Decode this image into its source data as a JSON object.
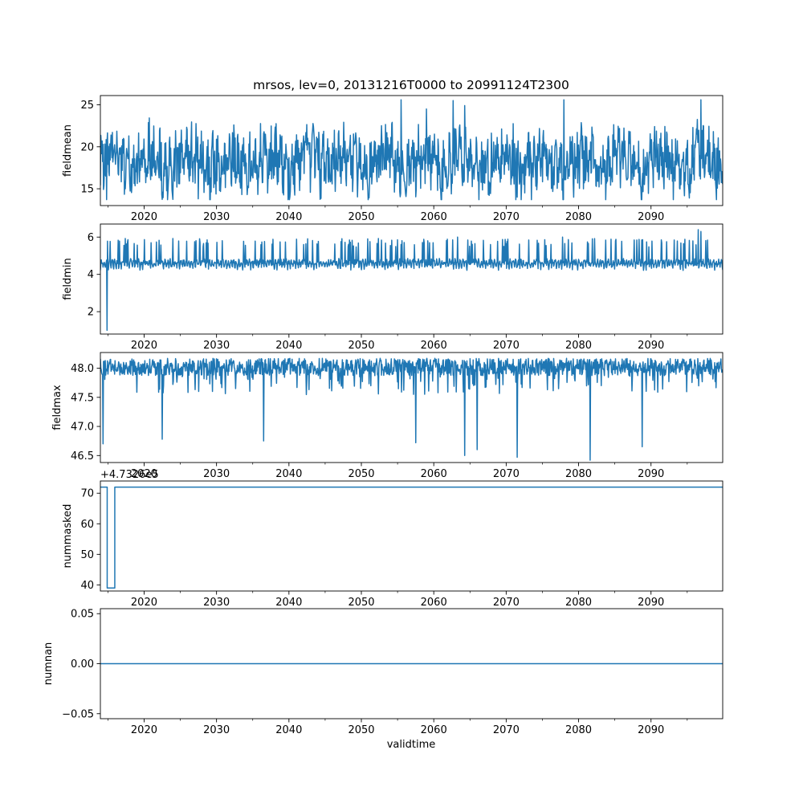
{
  "chart_data": {
    "type": "line",
    "title": "mrsos, lev=0, 20131216T0000 to 20991124T2300",
    "xlabel": "validtime",
    "x_range": [
      2013.96,
      2099.9
    ],
    "x_ticks": [
      "2020",
      "2030",
      "2040",
      "2050",
      "2060",
      "2070",
      "2080",
      "2090"
    ],
    "x_tick_values": [
      2020,
      2030,
      2040,
      2050,
      2060,
      2070,
      2080,
      2090
    ],
    "line_color": "#1f77b4",
    "panels": [
      {
        "ylabel": "fieldmean",
        "ylim": [
          13.0,
          26.1
        ],
        "y_ticks": [
          "15",
          "20",
          "25"
        ],
        "y_tick_values": [
          15,
          20,
          25
        ],
        "baseline": 18.2,
        "noise_amplitude": 3.2,
        "min_value": 13.7,
        "max_value": 25.6,
        "spikes": [
          {
            "x": 2055.5,
            "y": 25.6
          },
          {
            "x": 2062.7,
            "y": 25.5
          },
          {
            "x": 2078.0,
            "y": 25.6
          },
          {
            "x": 2096.9,
            "y": 25.6
          },
          {
            "x": 2064.3,
            "y": 24.9
          },
          {
            "x": 2059.0,
            "y": 24.5
          },
          {
            "x": 2014.8,
            "y": 13.7
          },
          {
            "x": 2027.5,
            "y": 13.8
          },
          {
            "x": 2095.3,
            "y": 13.9
          },
          {
            "x": 2071.5,
            "y": 14.0
          }
        ]
      },
      {
        "ylabel": "fieldmin",
        "ylim": [
          0.8,
          6.7
        ],
        "y_ticks": [
          "2",
          "4",
          "6"
        ],
        "y_tick_values": [
          2,
          4,
          6
        ],
        "baseline": 4.2,
        "noise_amplitude": 0.5,
        "min_value": 1.0,
        "max_value": 6.4,
        "spikes": [
          {
            "x": 2014.9,
            "y": 1.0
          },
          {
            "x": 2096.5,
            "y": 6.4
          },
          {
            "x": 2096.9,
            "y": 6.3
          },
          {
            "x": 2063.3,
            "y": 6.0
          },
          {
            "x": 2077.8,
            "y": 6.0
          },
          {
            "x": 2059.2,
            "y": 5.8
          },
          {
            "x": 2055.5,
            "y": 5.6
          }
        ]
      },
      {
        "ylabel": "fieldmax",
        "ylim": [
          46.38,
          48.27
        ],
        "y_ticks": [
          "46.5",
          "47.0",
          "47.5",
          "48.0"
        ],
        "y_tick_values": [
          46.5,
          47.0,
          47.5,
          48.0
        ],
        "baseline": 48.17,
        "noise_amplitude": 0.6,
        "min_value": 46.42,
        "max_value": 48.18,
        "spikes": [
          {
            "x": 2081.6,
            "y": 46.42
          },
          {
            "x": 2071.5,
            "y": 46.47
          },
          {
            "x": 2064.3,
            "y": 46.5
          },
          {
            "x": 2066.0,
            "y": 46.6
          },
          {
            "x": 2088.8,
            "y": 46.65
          },
          {
            "x": 2057.5,
            "y": 46.72
          },
          {
            "x": 2036.5,
            "y": 46.75
          },
          {
            "x": 2022.5,
            "y": 46.78
          },
          {
            "x": 2014.3,
            "y": 46.7
          }
        ]
      },
      {
        "ylabel": "nummasked",
        "ylim": [
          38,
          74
        ],
        "y_ticks": [
          "40",
          "50",
          "60",
          "70"
        ],
        "y_tick_values": [
          40,
          50,
          60,
          70
        ],
        "offset_text": "+4.7326e5",
        "step_points": [
          {
            "x": 2013.96,
            "y": 72
          },
          {
            "x": 2014.9,
            "y": 72
          },
          {
            "x": 2014.9,
            "y": 39
          },
          {
            "x": 2015.95,
            "y": 39
          },
          {
            "x": 2015.95,
            "y": 72
          },
          {
            "x": 2099.9,
            "y": 72
          }
        ]
      },
      {
        "ylabel": "numnan",
        "ylim": [
          -0.055,
          0.055
        ],
        "y_ticks": [
          "−0.05",
          "0.00",
          "0.05"
        ],
        "y_tick_values": [
          -0.05,
          0.0,
          0.05
        ],
        "step_points": [
          {
            "x": 2013.96,
            "y": 0.0
          },
          {
            "x": 2099.9,
            "y": 0.0
          }
        ]
      }
    ]
  }
}
